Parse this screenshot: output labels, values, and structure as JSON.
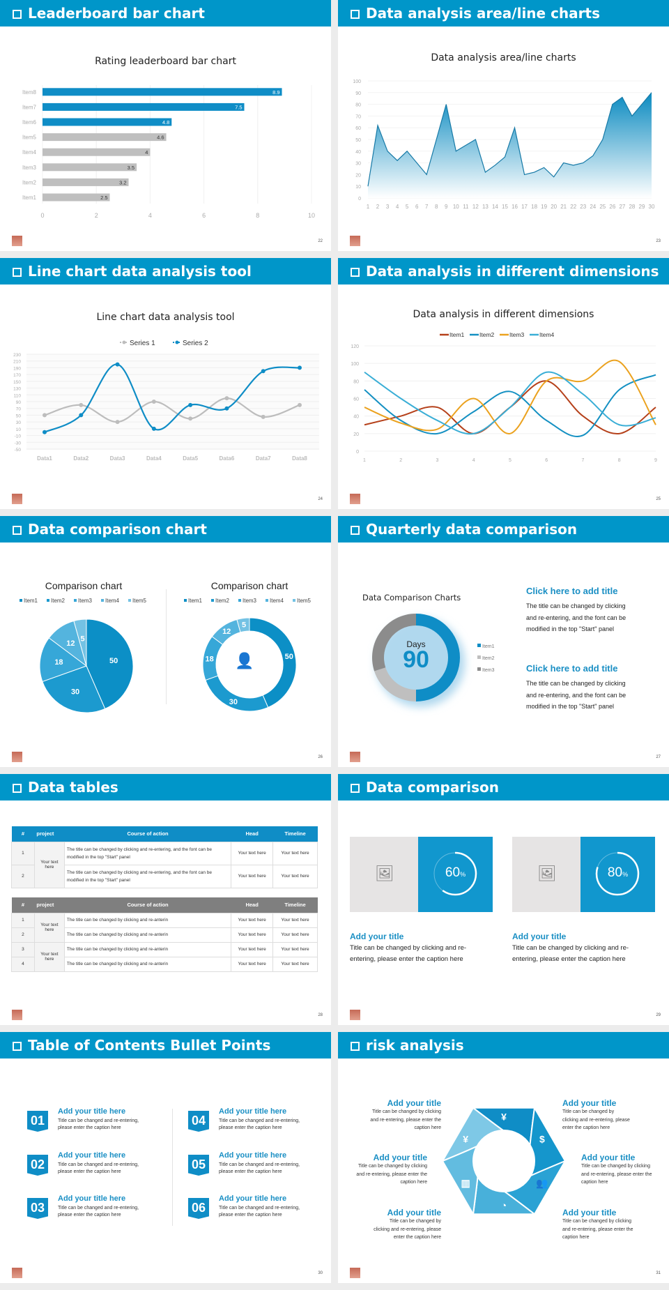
{
  "colors": {
    "header": "#0096c9",
    "accent": "#0f8dc6",
    "gray_bar": "#bfbfbf"
  },
  "slides": [
    {
      "title": "Leaderboard bar chart",
      "page": "22"
    },
    {
      "title": "Data analysis area/line charts",
      "page": "23"
    },
    {
      "title": "Line chart data analysis tool",
      "page": "24"
    },
    {
      "title": "Data analysis in different dimensions",
      "page": "25"
    },
    {
      "title": "Data comparison chart",
      "page": "26"
    },
    {
      "title": "Quarterly data comparison",
      "page": "27"
    },
    {
      "title": "Data tables",
      "page": "28"
    },
    {
      "title": "Data comparison",
      "page": "29"
    },
    {
      "title": "Table of Contents Bullet Points",
      "page": "30"
    },
    {
      "title": "risk analysis",
      "page": "31"
    }
  ],
  "chart_data": [
    {
      "type": "bar",
      "orientation": "horizontal",
      "title": "Rating leaderboard bar chart",
      "categories": [
        "Item1",
        "Item2",
        "Item3",
        "Item4",
        "Item5",
        "Item6",
        "Item7",
        "Item8"
      ],
      "values": [
        2.5,
        3.2,
        3.5,
        4,
        4.6,
        4.8,
        7.5,
        8.9
      ],
      "xlim": [
        0,
        10
      ],
      "xticks": [
        "0",
        "2",
        "4",
        "6",
        "8",
        "10"
      ],
      "grid": true,
      "highlight_colors": [
        "#bfbfbf",
        "#bfbfbf",
        "#bfbfbf",
        "#bfbfbf",
        "#bfbfbf",
        "#0f8dc6",
        "#0f8dc6",
        "#0f8dc6"
      ]
    },
    {
      "type": "area",
      "title": "Data analysis area/line charts",
      "x": [
        1,
        2,
        3,
        4,
        5,
        6,
        7,
        8,
        9,
        10,
        11,
        12,
        13,
        14,
        15,
        16,
        17,
        18,
        19,
        20,
        21,
        22,
        23,
        24,
        25,
        26,
        27,
        28,
        29,
        30
      ],
      "values": [
        10,
        62,
        40,
        32,
        40,
        30,
        20,
        50,
        80,
        40,
        45,
        50,
        22,
        28,
        35,
        60,
        20,
        22,
        26,
        18,
        30,
        28,
        30,
        36,
        50,
        80,
        86,
        70,
        80,
        90
      ],
      "ylim": [
        0,
        100
      ],
      "yticks": [
        "0",
        "10",
        "20",
        "30",
        "40",
        "50",
        "60",
        "70",
        "80",
        "90",
        "100"
      ],
      "grid": true
    },
    {
      "type": "line",
      "title": "Line chart data analysis tool",
      "smooth": true,
      "categories": [
        "Data1",
        "Data2",
        "Data3",
        "Data4",
        "Data5",
        "Data6",
        "Data7",
        "Data8"
      ],
      "series": [
        {
          "name": "Series 1",
          "color": "#bdbdbd",
          "values": [
            50,
            80,
            30,
            90,
            40,
            100,
            45,
            80
          ]
        },
        {
          "name": "Series 2",
          "color": "#0f8dc6",
          "values": [
            0,
            50,
            200,
            10,
            80,
            70,
            180,
            190
          ]
        }
      ],
      "ylim": [
        -50,
        230
      ],
      "yticks": [
        "230",
        "210",
        "190",
        "170",
        "150",
        "130",
        "110",
        "90",
        "70",
        "50",
        "30",
        "10",
        "-10",
        "-30",
        "-50"
      ],
      "legend": "top"
    },
    {
      "type": "line",
      "title": "Data analysis in different dimensions",
      "smooth": true,
      "categories": [
        "1",
        "2",
        "3",
        "4",
        "5",
        "6",
        "7",
        "8",
        "9"
      ],
      "series": [
        {
          "name": "Item1",
          "color": "#b5401a",
          "values": [
            30,
            40,
            50,
            20,
            50,
            80,
            40,
            20,
            50
          ]
        },
        {
          "name": "Item2",
          "color": "#1490c2",
          "values": [
            70,
            35,
            20,
            45,
            68,
            35,
            18,
            70,
            87
          ]
        },
        {
          "name": "Item3",
          "color": "#eba21f",
          "values": [
            50,
            32,
            25,
            60,
            20,
            80,
            80,
            102,
            30
          ]
        },
        {
          "name": "Item4",
          "color": "#3aaed6",
          "values": [
            90,
            60,
            35,
            20,
            50,
            90,
            65,
            30,
            38
          ]
        }
      ],
      "ylim": [
        0,
        120
      ],
      "yticks": [
        "0",
        "20",
        "40",
        "60",
        "80",
        "100",
        "120"
      ],
      "legend": "top"
    },
    {
      "type": "pie",
      "title": "Comparison chart",
      "categories": [
        "Item1",
        "Item2",
        "Item3",
        "Item4",
        "Item5"
      ],
      "values": [
        50,
        30,
        18,
        12,
        5
      ],
      "colors": [
        "#0c8fc6",
        "#1c9acf",
        "#36a7d8",
        "#54b4de",
        "#73c2e4"
      ],
      "legend": "top"
    },
    {
      "type": "pie",
      "donut": true,
      "title": "Comparison chart",
      "categories": [
        "Item1",
        "Item2",
        "Item3",
        "Item4",
        "Item5"
      ],
      "values": [
        50,
        30,
        18,
        12,
        5
      ],
      "colors": [
        "#0c8fc6",
        "#1c9acf",
        "#36a7d8",
        "#54b4de",
        "#73c2e4"
      ],
      "legend": "top"
    },
    {
      "type": "pie",
      "donut": true,
      "title": "Data Comparison Charts",
      "center_label": "Days",
      "center_value": "90",
      "categories": [
        "Item1",
        "Item2",
        "Item3"
      ],
      "values": [
        50,
        20,
        30
      ],
      "colors": [
        "#0f8dc6",
        "#bfbfbf",
        "#8c8c8c"
      ],
      "legend": "right"
    }
  ],
  "quarterly": {
    "blocks": [
      {
        "title": "Click here to add title",
        "lines": [
          "The title can be changed by clicking",
          "and re-entering, and the font can be",
          "modified in the top \"Start\" panel"
        ]
      },
      {
        "title": "Click here to add title",
        "lines": [
          "The title can be changed by clicking",
          "and re-entering, and the font can be",
          "modified in the top \"Start\" panel"
        ]
      }
    ]
  },
  "tables": {
    "headers": [
      "#",
      "project",
      "Course of action",
      "Head",
      "Timeline"
    ],
    "table1": {
      "project": "Your text here",
      "rows": [
        {
          "n": "1",
          "action": "The title can be changed by clicking and re-entering, and the font can be modified in the top \"Start\" panel",
          "head": "Your text here",
          "timeline": "Your text here"
        },
        {
          "n": "2",
          "action": "The title can be changed by clicking and re-entering, and the font can be modified in the top \"Start\" panel",
          "head": "Your text here",
          "timeline": "Your text here"
        }
      ]
    },
    "table2": {
      "projects": [
        "Your text here",
        "Your text here"
      ],
      "rows": [
        {
          "n": "1",
          "action": "The title can be changed by clicking and re-anterin",
          "head": "Your text here",
          "timeline": "Your text here"
        },
        {
          "n": "2",
          "action": "The title can be changed by clicking and re-anterin",
          "head": "Your text here",
          "timeline": "Your text here"
        },
        {
          "n": "3",
          "action": "The title can be changed by clicking and re-anterin",
          "head": "Your text here",
          "timeline": "Your text here"
        },
        {
          "n": "4",
          "action": "The title can be changed by clicking and re-anterin",
          "head": "Your text here",
          "timeline": "Your text here"
        }
      ]
    }
  },
  "comparison": {
    "cards": [
      {
        "percent": 60,
        "value": "60",
        "unit": "%",
        "title": "Add your title",
        "lines": [
          "Title can be changed by clicking and re-",
          "entering, please enter the caption here"
        ],
        "icon": "image-add-icon"
      },
      {
        "percent": 80,
        "value": "80",
        "unit": "%",
        "title": "Add your title",
        "lines": [
          "Title can be changed by clicking and re-",
          "entering, please enter the caption here"
        ],
        "icon": "image-add-icon"
      }
    ]
  },
  "toc": {
    "items": [
      {
        "num": "01",
        "title": "Add your title here",
        "lines": [
          "Title can be changed and re-entering,",
          "please enter the caption here"
        ]
      },
      {
        "num": "02",
        "title": "Add your title here",
        "lines": [
          "Title can be changed and re-entering,",
          "please enter the caption here"
        ]
      },
      {
        "num": "03",
        "title": "Add your title here",
        "lines": [
          "Title can be changed and re-entering,",
          "please enter the caption here"
        ]
      },
      {
        "num": "04",
        "title": "Add your title here",
        "lines": [
          "Title can be changed and re-entering,",
          "please enter the caption here"
        ]
      },
      {
        "num": "05",
        "title": "Add your title here",
        "lines": [
          "Title can be changed and re-entering,",
          "please enter the caption here"
        ]
      },
      {
        "num": "06",
        "title": "Add your title here",
        "lines": [
          "Title can be changed and re-entering,",
          "please enter the caption here"
        ]
      }
    ]
  },
  "risk": {
    "items": [
      {
        "title": "Add your title",
        "lines": [
          "Title can be changed by clicking",
          "and re-entering, please enter the",
          "caption here"
        ]
      },
      {
        "title": "Add your title",
        "lines": [
          "Title can be changed by",
          "clicking and re-entering, please",
          "enter the caption here"
        ]
      },
      {
        "title": "Add your title",
        "lines": [
          "Title can be changed by clicking",
          "and re-entering, please enter the",
          "caption here"
        ]
      },
      {
        "title": "Add your title",
        "lines": [
          "Title can be changed by clicking",
          "and re-entering, please enter the",
          "caption here"
        ]
      },
      {
        "title": "Add your title",
        "lines": [
          "Title can be changed by",
          "clicking and re-entering, please",
          "enter the caption here"
        ]
      },
      {
        "title": "Add your title",
        "lines": [
          "Title can be changed by clicking",
          "and re-entering, please enter the",
          "caption here"
        ]
      }
    ],
    "icons": [
      "money-bag-yen-icon",
      "coins-dollar-icon",
      "users-icon",
      "pie-chart-icon",
      "buildings-icon",
      "yen-hand-icon"
    ]
  }
}
